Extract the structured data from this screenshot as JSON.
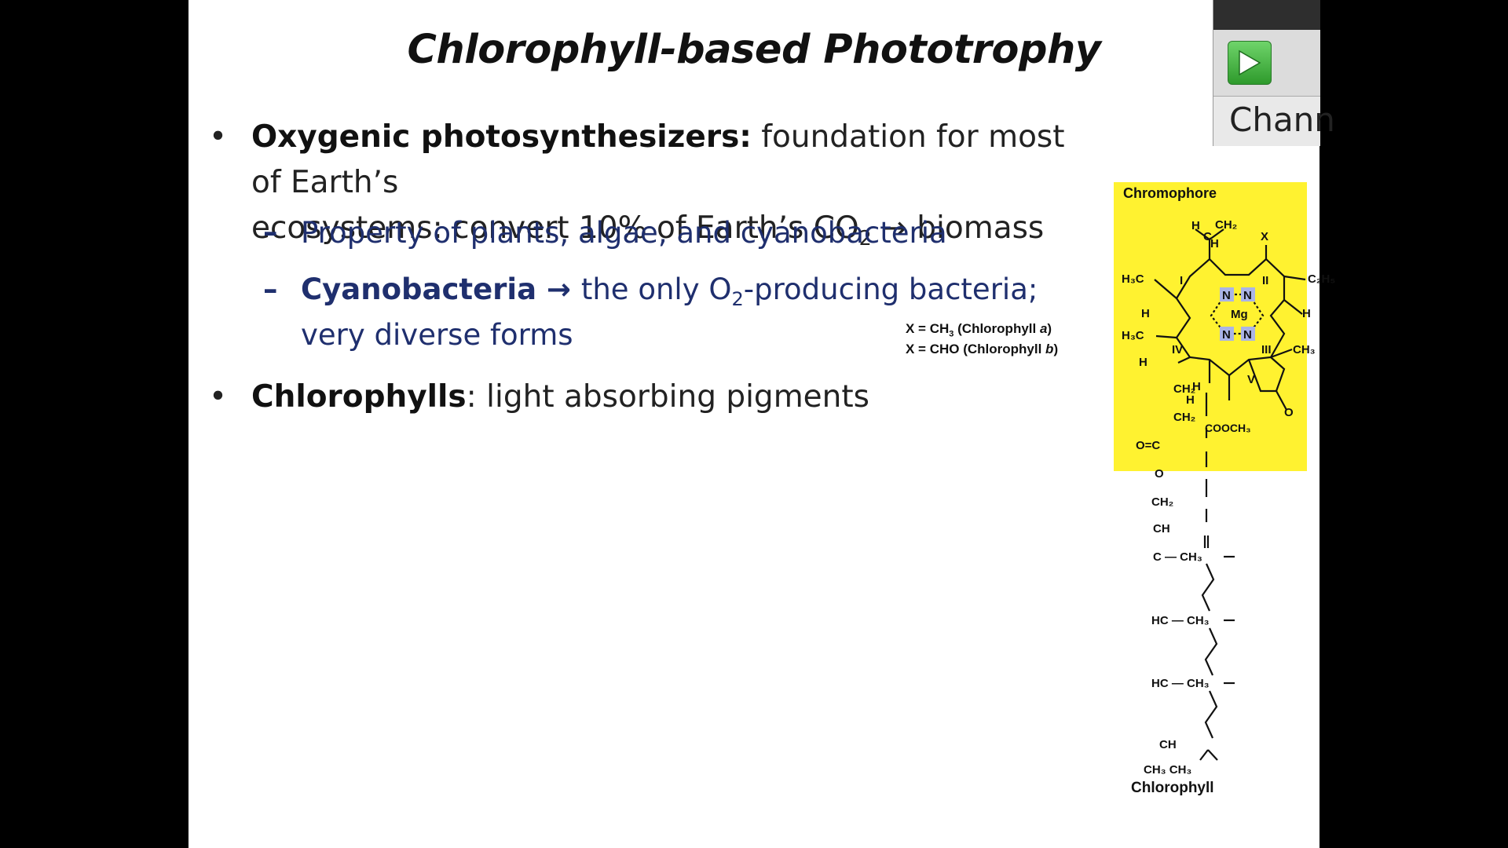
{
  "slide": {
    "title": "Chlorophyll-based Phototrophy",
    "bullets": [
      {
        "bold": "Oxygenic photosynthesizers:",
        "line1_rest": " foundation for most of Earth’s",
        "line2_pre": "ecosystems:  convert 10% of Earth’s CO",
        "line2_sub": "2",
        "line2_post": " → biomass"
      },
      {
        "bold": "Chlorophylls",
        "rest": ": light absorbing pigments"
      }
    ],
    "subbullets": [
      {
        "text": "Property of plants, algae, and cyanobacteria"
      },
      {
        "bold": "Cyanobacteria",
        "arrow": " → ",
        "pre": "the only O",
        "sub": "2",
        "post": "-producing bacteria;",
        "line2": "very diverse forms"
      }
    ]
  },
  "figure": {
    "box_label": "Chromophore",
    "x_a_pre": "X = CH",
    "x_a_sub": "3",
    "x_a_post": " (Chlorophyll ",
    "x_a_it": "a",
    "x_b_pre": "X = CHO (Chlorophyll ",
    "x_b_it": "b",
    "close": ")",
    "molecule_label": "Chlorophyll",
    "atoms": {
      "H": "H",
      "X": "X",
      "N": "N",
      "Mg": "Mg",
      "O": "O",
      "C": "C",
      "CH2": "CH₂",
      "H3C": "H₃C",
      "C2H5": "C₂H₅",
      "CH3": "CH₃",
      "COOCH3": "COOCH₃",
      "OeqC": "O=C",
      "CH": "CH",
      "CminusCH3": "C — CH₃",
      "HCminusCH3": "HC — CH₃",
      "CH3CH3": "CH₃ CH₃",
      "ring_I": "I",
      "ring_II": "II",
      "ring_III": "III",
      "ring_IV": "IV",
      "ring_V": "V"
    },
    "colors": {
      "box": "#fff230",
      "n_highlight": "#aab4e6"
    }
  },
  "overlay": {
    "play_icon": "play-icon",
    "channel_text": "Chann"
  }
}
